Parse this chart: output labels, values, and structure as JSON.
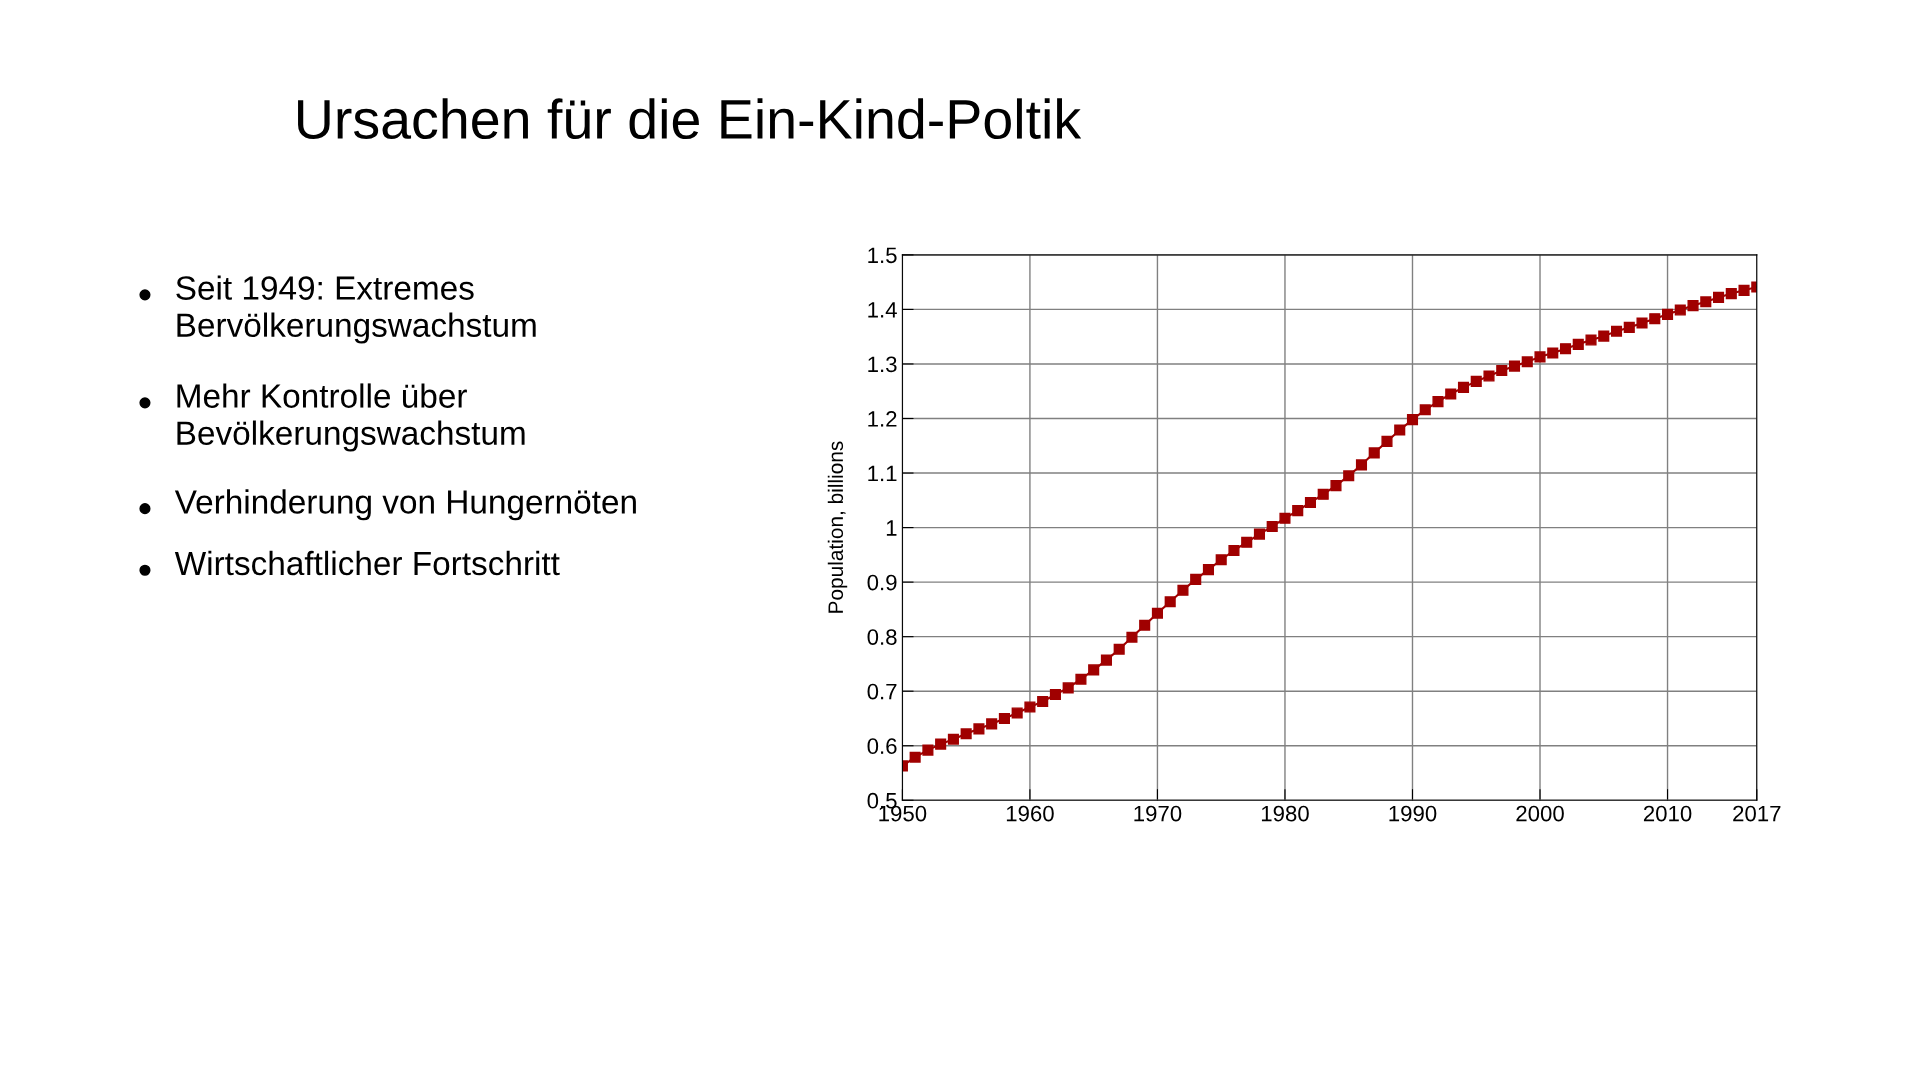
{
  "chart_data": {
    "type": "line",
    "title": "Ursachen für die Ein-Kind-Poltik",
    "ylabel": "Population, billions",
    "annotations": [
      "Seit 1949: Extremes\nBervölkerungswachstum",
      "Mehr Kontrolle über\nBevölkerungswachstum",
      "Verhinderung von Hungernöten",
      "Wirtschaftlicher Fortschritt"
    ],
    "x": [
      1950,
      1951,
      1952,
      1953,
      1954,
      1955,
      1956,
      1957,
      1958,
      1959,
      1960,
      1961,
      1962,
      1963,
      1964,
      1965,
      1966,
      1967,
      1968,
      1969,
      1970,
      1971,
      1972,
      1973,
      1974,
      1975,
      1976,
      1977,
      1978,
      1979,
      1980,
      1981,
      1982,
      1983,
      1984,
      1985,
      1986,
      1987,
      1988,
      1989,
      1990,
      1991,
      1992,
      1993,
      1994,
      1995,
      1996,
      1997,
      1998,
      1999,
      2000,
      2001,
      2002,
      2003,
      2004,
      2005,
      2006,
      2007,
      2008,
      2009,
      2010,
      2011,
      2012,
      2013,
      2014,
      2015,
      2016,
      2017
    ],
    "series": [
      {
        "color": "#a00000",
        "values": [
          0.563,
          0.579,
          0.592,
          0.603,
          0.612,
          0.622,
          0.631,
          0.64,
          0.65,
          0.66,
          0.671,
          0.681,
          0.694,
          0.706,
          0.722,
          0.739,
          0.757,
          0.777,
          0.799,
          0.821,
          0.843,
          0.864,
          0.885,
          0.905,
          0.923,
          0.941,
          0.958,
          0.973,
          0.988,
          1.002,
          1.017,
          1.031,
          1.046,
          1.061,
          1.077,
          1.095,
          1.115,
          1.137,
          1.158,
          1.179,
          1.198,
          1.216,
          1.231,
          1.245,
          1.257,
          1.268,
          1.278,
          1.288,
          1.296,
          1.304,
          1.313,
          1.32,
          1.328,
          1.336,
          1.344,
          1.351,
          1.36,
          1.367,
          1.375,
          1.383,
          1.391,
          1.399,
          1.407,
          1.414,
          1.422,
          1.429,
          1.435,
          1.441
        ]
      }
    ],
    "xlim": [
      1950,
      2017
    ],
    "xticks": [
      1950,
      1960,
      1970,
      1980,
      1990,
      2000,
      2010,
      2017
    ],
    "ylim": [
      0.5,
      1.5
    ],
    "yticks": [
      0.5,
      0.6,
      0.7,
      0.8,
      0.9,
      1,
      1.1,
      1.2,
      1.3,
      1.4,
      1.5
    ],
    "grid": true,
    "legend": false,
    "marker": "square",
    "line_style": "solid"
  }
}
